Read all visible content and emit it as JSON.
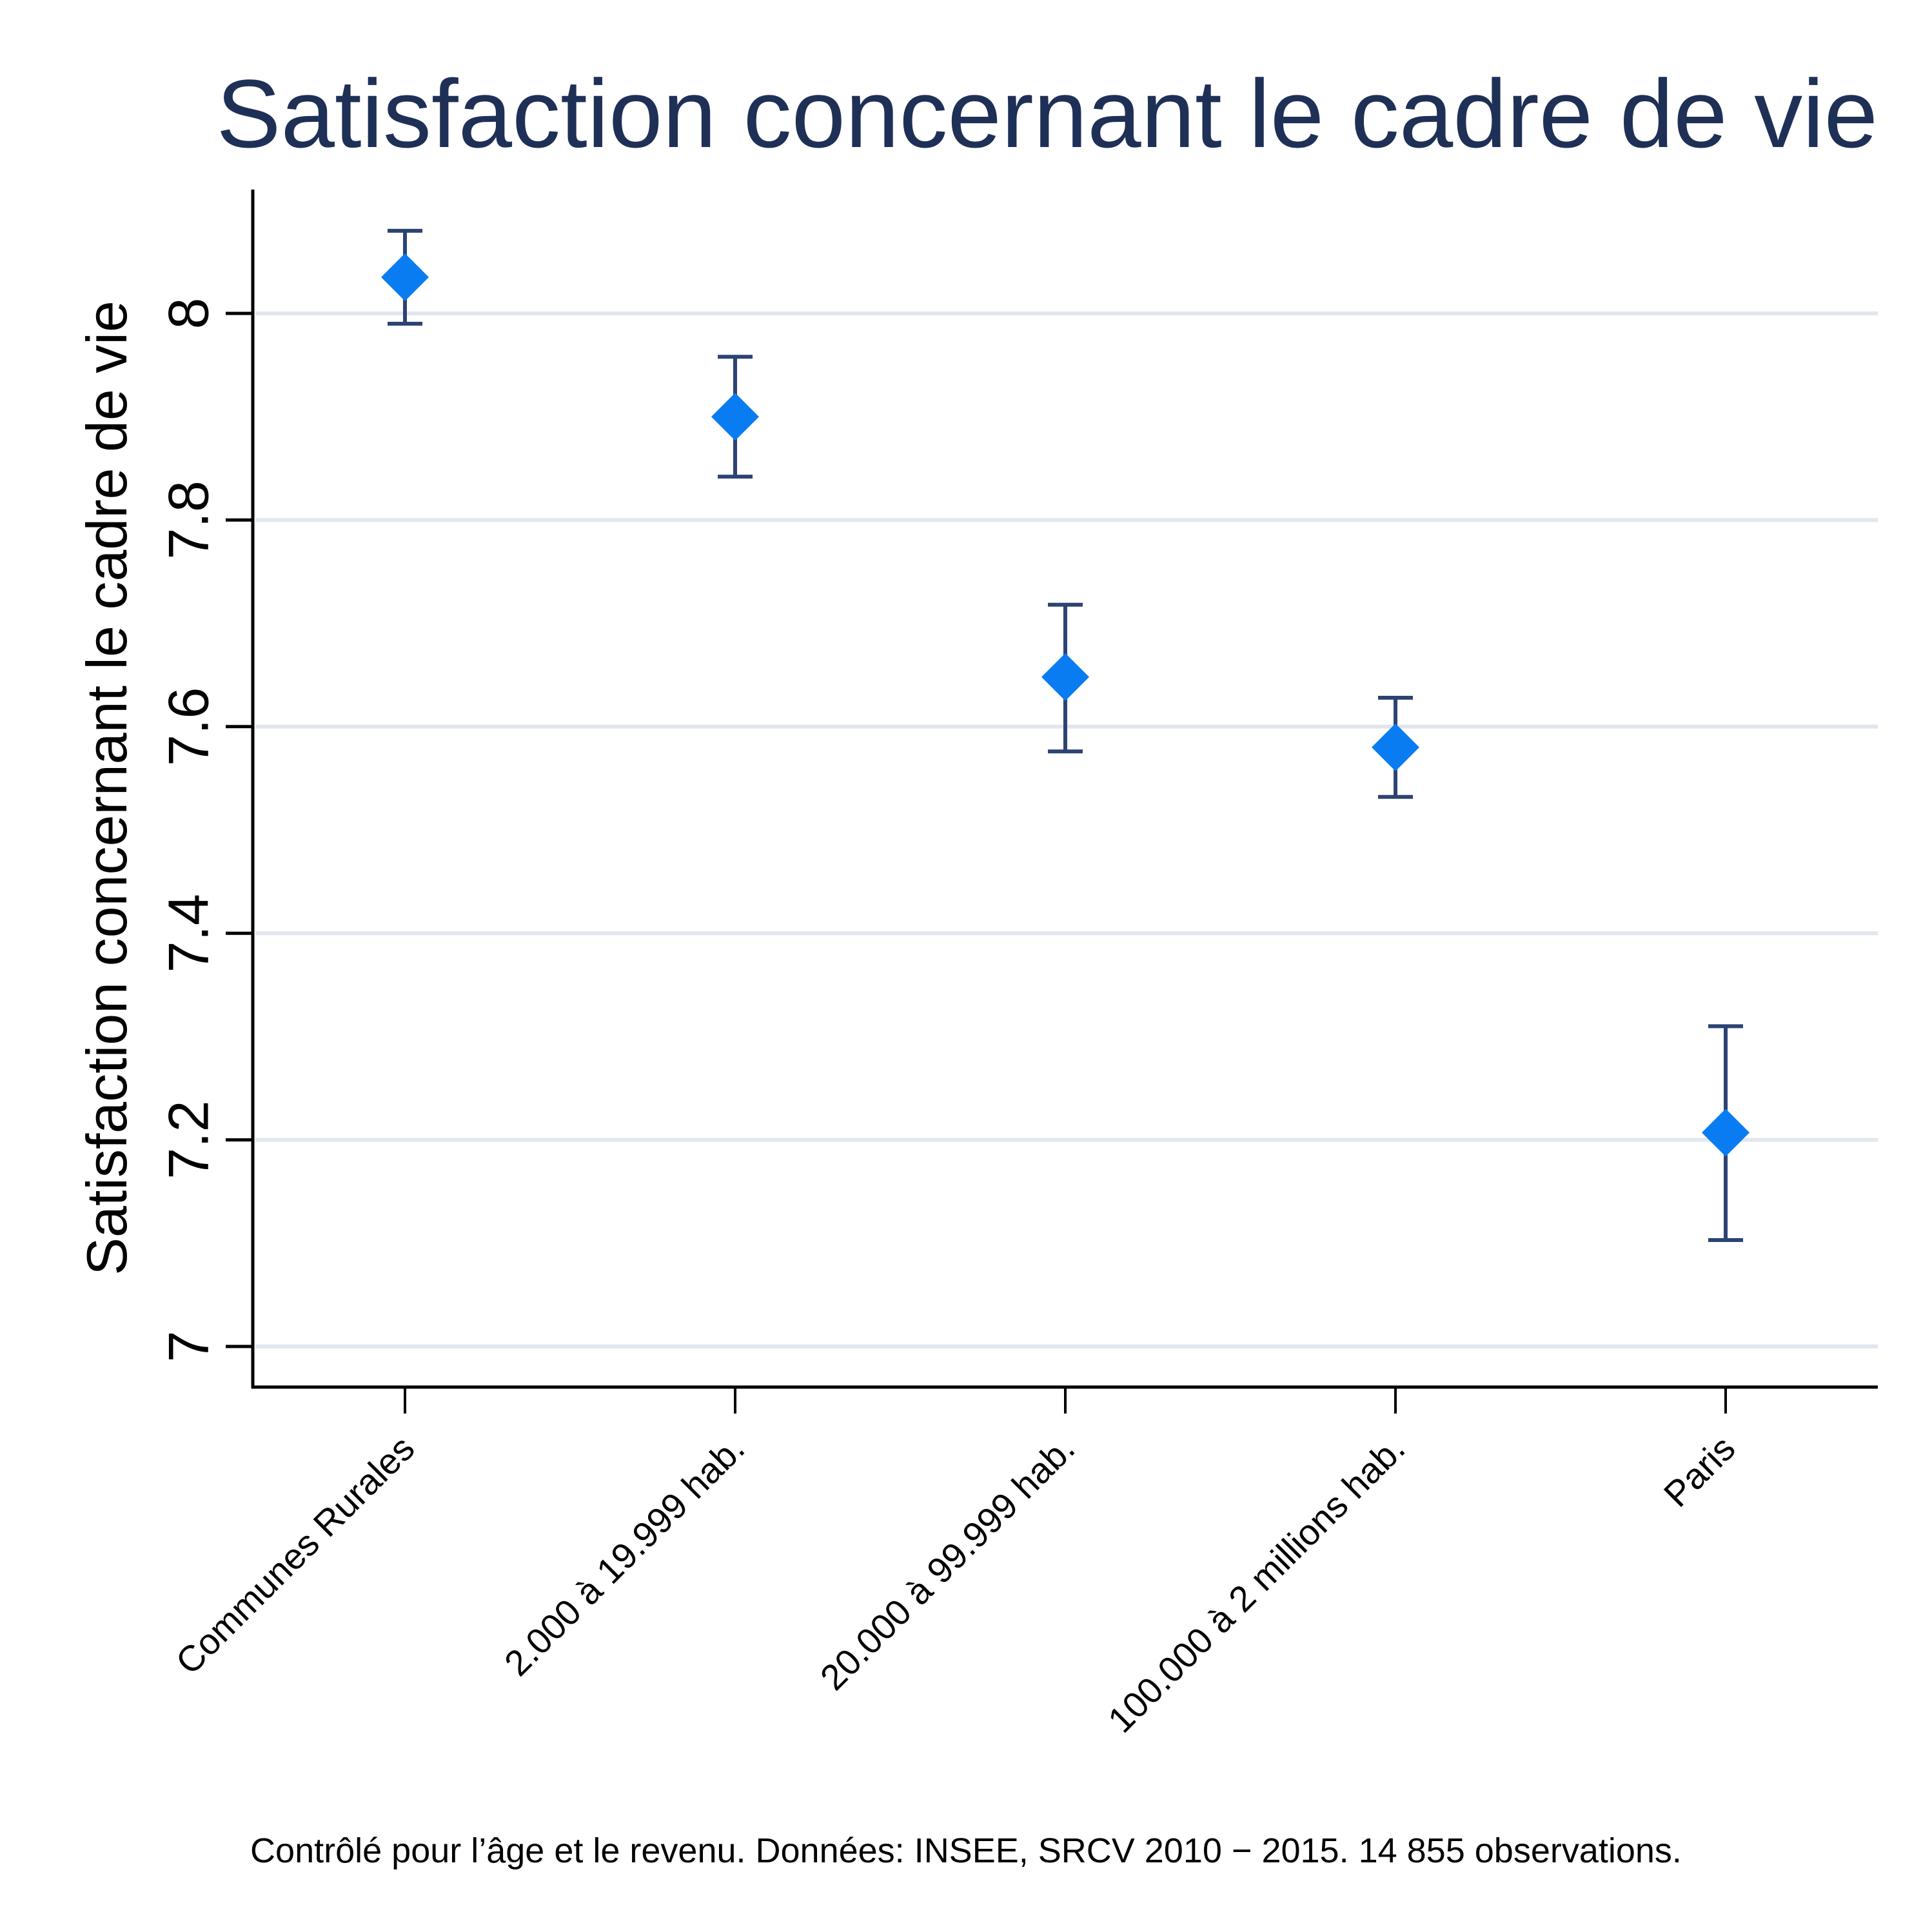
{
  "colors": {
    "title": "#1f3057",
    "grid": "#e2e6ef",
    "axis": "#000000",
    "errorbar": "#2c4373",
    "marker": "#0a7cf2"
  },
  "chart_data": {
    "type": "scatter",
    "marker": "diamond",
    "error_bars": true,
    "title": "Satisfaction concernant le cadre de vie",
    "xlabel": "",
    "ylabel": "Satisfaction concernant le cadre de vie",
    "categories": [
      "Communes Rurales",
      "2.000 à 19.999 hab.",
      "20.000 à 99.999 hab.",
      "100.000 à 2 millions hab.",
      "Paris"
    ],
    "values": [
      8.035,
      7.9,
      7.648,
      7.58,
      7.207
    ],
    "ci_low": [
      7.99,
      7.842,
      7.576,
      7.532,
      7.103
    ],
    "ci_high": [
      8.08,
      7.958,
      7.718,
      7.628,
      7.31
    ],
    "yticks": [
      "7",
      "7.2",
      "7.4",
      "7.6",
      "7.8",
      "8"
    ],
    "ylim": [
      6.96,
      8.12
    ],
    "grid": true,
    "legend": "none",
    "caption": "Contrôlé pour l’âge et le revenu. Données: INSEE, SRCV 2010 − 2015. 14 855 observations."
  }
}
